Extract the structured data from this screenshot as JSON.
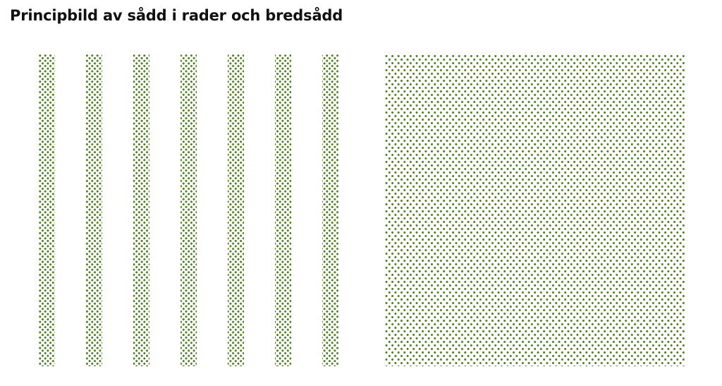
{
  "header": {
    "title": "Principbild av sådd i rader och bredsådd"
  }
}
